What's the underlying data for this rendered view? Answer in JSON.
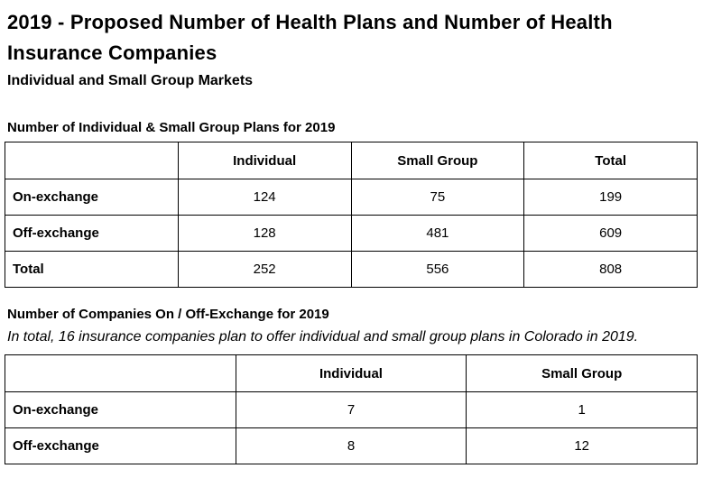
{
  "doc": {
    "title": "2019 - Proposed Number of Health Plans and Number of Health Insurance Companies",
    "subtitle": "Individual and Small Group Markets"
  },
  "plans": {
    "heading": "Number of Individual & Small Group Plans for 2019",
    "columns": [
      "",
      "Individual",
      "Small Group",
      "Total"
    ],
    "rows": [
      {
        "label": "On-exchange",
        "values": [
          "124",
          "75",
          "199"
        ]
      },
      {
        "label": "Off-exchange",
        "values": [
          "128",
          "481",
          "609"
        ]
      },
      {
        "label": "Total",
        "values": [
          "252",
          "556",
          "808"
        ]
      }
    ]
  },
  "companies": {
    "heading": "Number of Companies On / Off-Exchange for 2019",
    "note": "In total, 16 insurance companies plan to offer individual and small group plans in Colorado in 2019.",
    "columns": [
      "",
      "Individual",
      "Small Group"
    ],
    "rows": [
      {
        "label": "On-exchange",
        "values": [
          "7",
          "1"
        ]
      },
      {
        "label": "Off-exchange",
        "values": [
          "8",
          "12"
        ]
      }
    ]
  }
}
